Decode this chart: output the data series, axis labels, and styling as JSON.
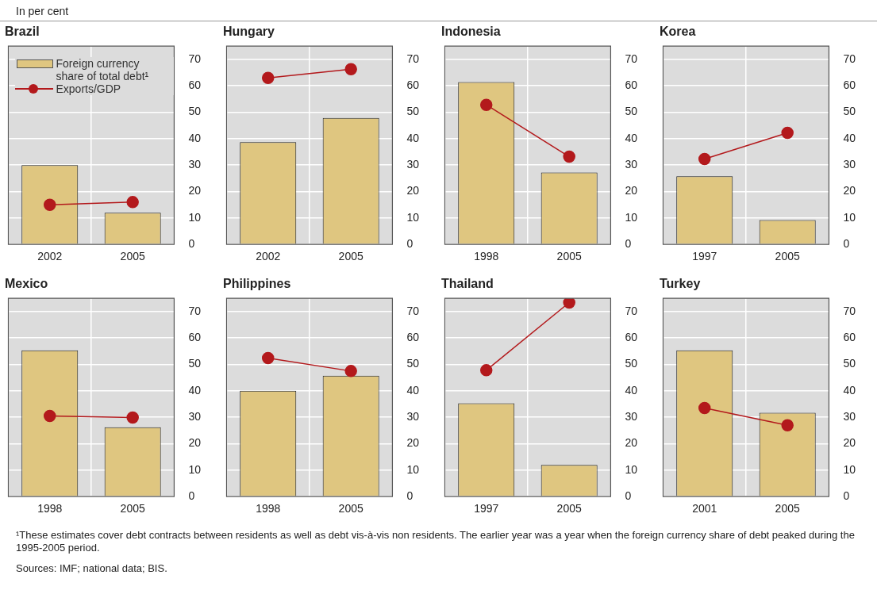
{
  "chart_data": [
    {
      "type": "bar",
      "title": "Brazil",
      "categories": [
        "2002",
        "2005"
      ],
      "legend": "top left",
      "marker": "circle",
      "grid": true,
      "ylim": [
        0,
        75
      ],
      "yticks": [
        0,
        10,
        20,
        30,
        40,
        50,
        60,
        70
      ],
      "annotations": [
        "In per cent"
      ],
      "series": [
        {
          "name": "Foreign currency share of total debt¹",
          "color": "#dfc680",
          "values": [
            30,
            12
          ]
        },
        {
          "name": "Exports/GDP",
          "type": "line",
          "color": "#b3191c",
          "values": [
            15,
            16
          ]
        }
      ]
    },
    {
      "type": "bar",
      "title": "Hungary",
      "categories": [
        "2002",
        "2005"
      ],
      "marker": "circle",
      "grid": true,
      "ylim": [
        0,
        75
      ],
      "yticks": [
        0,
        10,
        20,
        30,
        40,
        50,
        60,
        70
      ],
      "series": [
        {
          "color": "#dfc680",
          "values": [
            38.7,
            47.8
          ]
        },
        {
          "type": "line",
          "color": "#b3191c",
          "values": [
            63,
            66.3
          ]
        }
      ]
    },
    {
      "type": "bar",
      "title": "Indonesia",
      "categories": [
        "1998",
        "2005"
      ],
      "marker": "circle",
      "grid": true,
      "ylim": [
        0,
        75
      ],
      "yticks": [
        0,
        10,
        20,
        30,
        40,
        50,
        60,
        70
      ],
      "series": [
        {
          "color": "#dfc680",
          "values": [
            61.4,
            27.2
          ]
        },
        {
          "type": "line",
          "color": "#b3191c",
          "values": [
            52.8,
            33.2
          ]
        }
      ]
    },
    {
      "type": "bar",
      "title": "Korea",
      "categories": [
        "1997",
        "2005"
      ],
      "marker": "circle",
      "grid": true,
      "ylim": [
        0,
        75
      ],
      "yticks": [
        0,
        10,
        20,
        30,
        40,
        50,
        60,
        70
      ],
      "series": [
        {
          "color": "#dfc680",
          "values": [
            25.8,
            9.2
          ]
        },
        {
          "type": "line",
          "color": "#b3191c",
          "values": [
            32.3,
            42.2
          ]
        }
      ]
    },
    {
      "type": "bar",
      "title": "Mexico",
      "categories": [
        "1998",
        "2005"
      ],
      "marker": "circle",
      "grid": true,
      "ylim": [
        0,
        75
      ],
      "yticks": [
        0,
        10,
        20,
        30,
        40,
        50,
        60,
        70
      ],
      "series": [
        {
          "color": "#dfc680",
          "values": [
            55.3,
            26.2
          ]
        },
        {
          "type": "line",
          "color": "#b3191c",
          "values": [
            30.5,
            29.9
          ]
        }
      ]
    },
    {
      "type": "bar",
      "title": "Philippines",
      "categories": [
        "1998",
        "2005"
      ],
      "marker": "circle",
      "grid": true,
      "ylim": [
        0,
        75
      ],
      "yticks": [
        0,
        10,
        20,
        30,
        40,
        50,
        60,
        70
      ],
      "series": [
        {
          "color": "#dfc680",
          "values": [
            40,
            45.7
          ]
        },
        {
          "type": "line",
          "color": "#b3191c",
          "values": [
            52.4,
            47.5
          ]
        }
      ]
    },
    {
      "type": "bar",
      "title": "Thailand",
      "categories": [
        "1997",
        "2005"
      ],
      "marker": "circle",
      "grid": true,
      "ylim": [
        0,
        75
      ],
      "yticks": [
        0,
        10,
        20,
        30,
        40,
        50,
        60,
        70
      ],
      "series": [
        {
          "color": "#dfc680",
          "values": [
            35.3,
            12
          ]
        },
        {
          "type": "line",
          "color": "#b3191c",
          "values": [
            47.8,
            73.4
          ]
        }
      ]
    },
    {
      "type": "bar",
      "title": "Turkey",
      "categories": [
        "2001",
        "2005"
      ],
      "marker": "circle",
      "grid": true,
      "ylim": [
        0,
        75
      ],
      "yticks": [
        0,
        10,
        20,
        30,
        40,
        50,
        60,
        70
      ],
      "annotations": [
        "¹These estimates cover debt contracts between residents as well as debt vis-à-vis non residents. The earlier year was a year when the foreign currency share of debt peaked during the 1995-2005 period.",
        "Sources: IMF; national data; BIS."
      ],
      "series": [
        {
          "color": "#dfc680",
          "values": [
            55.3,
            31.7
          ]
        },
        {
          "type": "line",
          "color": "#b3191c",
          "values": [
            33.5,
            27
          ]
        }
      ]
    }
  ]
}
